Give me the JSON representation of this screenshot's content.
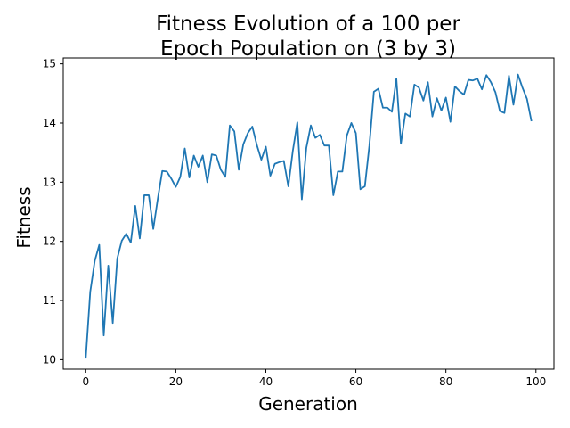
{
  "chart_data": {
    "type": "line",
    "title_lines": [
      "Fitness Evolution of a 100 per",
      "Epoch Population on (3 by 3)"
    ],
    "xlabel": "Generation",
    "ylabel": "Fitness",
    "xlim": [
      -5,
      104
    ],
    "ylim": [
      9.84,
      15.1
    ],
    "x_ticks": [
      0,
      20,
      40,
      60,
      80,
      100
    ],
    "y_ticks": [
      10,
      11,
      12,
      13,
      14,
      15
    ],
    "grid": false,
    "series": [
      {
        "color": "#1f77b4",
        "x": [
          0,
          1,
          2,
          3,
          4,
          5,
          6,
          7,
          8,
          9,
          10,
          11,
          12,
          13,
          14,
          15,
          16,
          17,
          18,
          19,
          20,
          21,
          22,
          23,
          24,
          25,
          26,
          27,
          28,
          29,
          30,
          31,
          32,
          33,
          34,
          35,
          36,
          37,
          38,
          39,
          40,
          41,
          42,
          43,
          44,
          45,
          46,
          47,
          48,
          49,
          50,
          51,
          52,
          53,
          54,
          55,
          56,
          57,
          58,
          59,
          60,
          61,
          62,
          63,
          64,
          65,
          66,
          67,
          68,
          69,
          70,
          71,
          72,
          73,
          74,
          75,
          76,
          77,
          78,
          79,
          80,
          81,
          82,
          83,
          84,
          85,
          86,
          87,
          88,
          89,
          90,
          91,
          92,
          93,
          94,
          95,
          96,
          97,
          98,
          99
        ],
        "y": [
          10.02,
          11.15,
          11.67,
          11.94,
          10.41,
          11.59,
          10.62,
          11.71,
          12.01,
          12.13,
          11.98,
          12.6,
          12.05,
          12.78,
          12.78,
          12.21,
          12.72,
          13.19,
          13.18,
          13.06,
          12.92,
          13.09,
          13.57,
          13.08,
          13.45,
          13.26,
          13.45,
          13.0,
          13.47,
          13.45,
          13.21,
          13.09,
          13.96,
          13.86,
          13.21,
          13.64,
          13.83,
          13.94,
          13.63,
          13.38,
          13.6,
          13.11,
          13.31,
          13.34,
          13.36,
          12.93,
          13.53,
          14.01,
          12.71,
          13.58,
          13.96,
          13.75,
          13.8,
          13.62,
          13.62,
          12.78,
          13.18,
          13.18,
          13.79,
          14.0,
          13.83,
          12.88,
          12.93,
          13.62,
          14.53,
          14.58,
          14.26,
          14.26,
          14.19,
          14.75,
          13.65,
          14.16,
          14.11,
          14.65,
          14.6,
          14.38,
          14.69,
          14.11,
          14.42,
          14.21,
          14.43,
          14.02,
          14.62,
          14.54,
          14.48,
          14.73,
          14.72,
          14.75,
          14.57,
          14.81,
          14.69,
          14.52,
          14.2,
          14.17,
          14.8,
          14.31,
          14.82,
          14.6,
          14.41,
          14.03
        ]
      }
    ]
  }
}
